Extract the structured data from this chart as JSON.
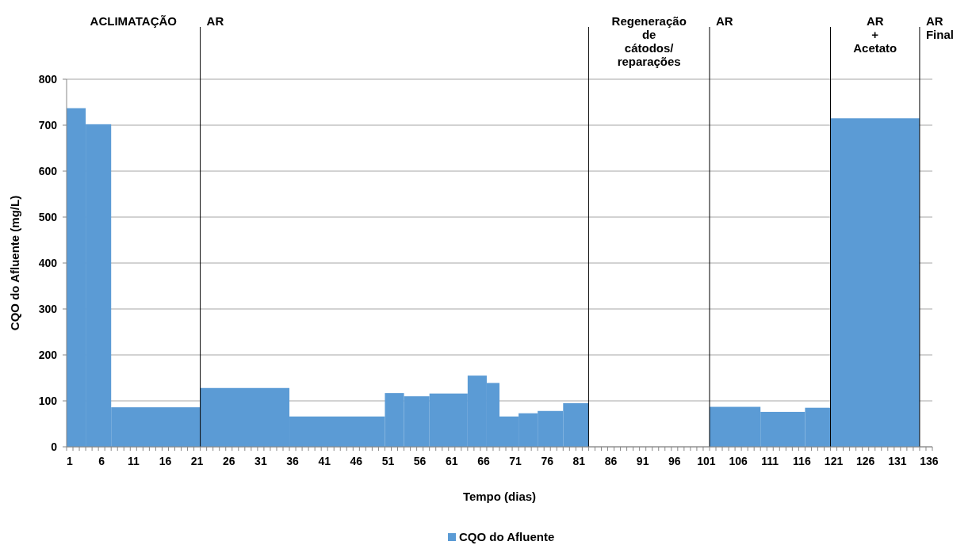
{
  "chart_data": {
    "type": "histogram",
    "xlabel": "Tempo (dias)",
    "ylabel": "CQO do Afluente (mg/L)",
    "bins": [
      0.5,
      3.5,
      7.5,
      21.5,
      35.5,
      50.5,
      53.5,
      57.5,
      63.5,
      66.5,
      68.5,
      71.5,
      74.5,
      78.5,
      82.5,
      101.5,
      109.5,
      116.5,
      120.5,
      134.5
    ],
    "series": [
      {
        "name": "CQO do Afluente",
        "color": "#5b9bd5",
        "values": [
          737,
          702,
          86,
          128,
          66,
          117,
          110,
          116,
          155,
          139,
          66,
          73,
          78,
          95,
          null,
          87,
          76,
          85,
          715
        ]
      }
    ],
    "xlim": [
      0.5,
      136.5
    ],
    "xticks": [
      1,
      6,
      11,
      16,
      21,
      26,
      31,
      36,
      41,
      46,
      51,
      56,
      61,
      66,
      71,
      76,
      81,
      86,
      91,
      96,
      101,
      106,
      111,
      116,
      121,
      126,
      131,
      136
    ],
    "ylim": [
      0,
      800
    ],
    "yticks": [
      0,
      100,
      200,
      300,
      400,
      500,
      600,
      700,
      800
    ],
    "annotations": [
      "ACLIMATAÇÃO"
    ],
    "ref_lines": [
      {
        "axis": "x",
        "value": 21.5,
        "label": "AR"
      },
      {
        "axis": "x",
        "value": 82.5,
        "label": "Regeneração\nde\ncátodos/\nreparações"
      },
      {
        "axis": "x",
        "value": 101.5,
        "label": "AR"
      },
      {
        "axis": "x",
        "value": 120.5,
        "label": "AR\n+\nAcetato"
      },
      {
        "axis": "x",
        "value": 134.5,
        "label": "AR\nFinal"
      }
    ],
    "grid": "y",
    "legend": "bottom"
  }
}
